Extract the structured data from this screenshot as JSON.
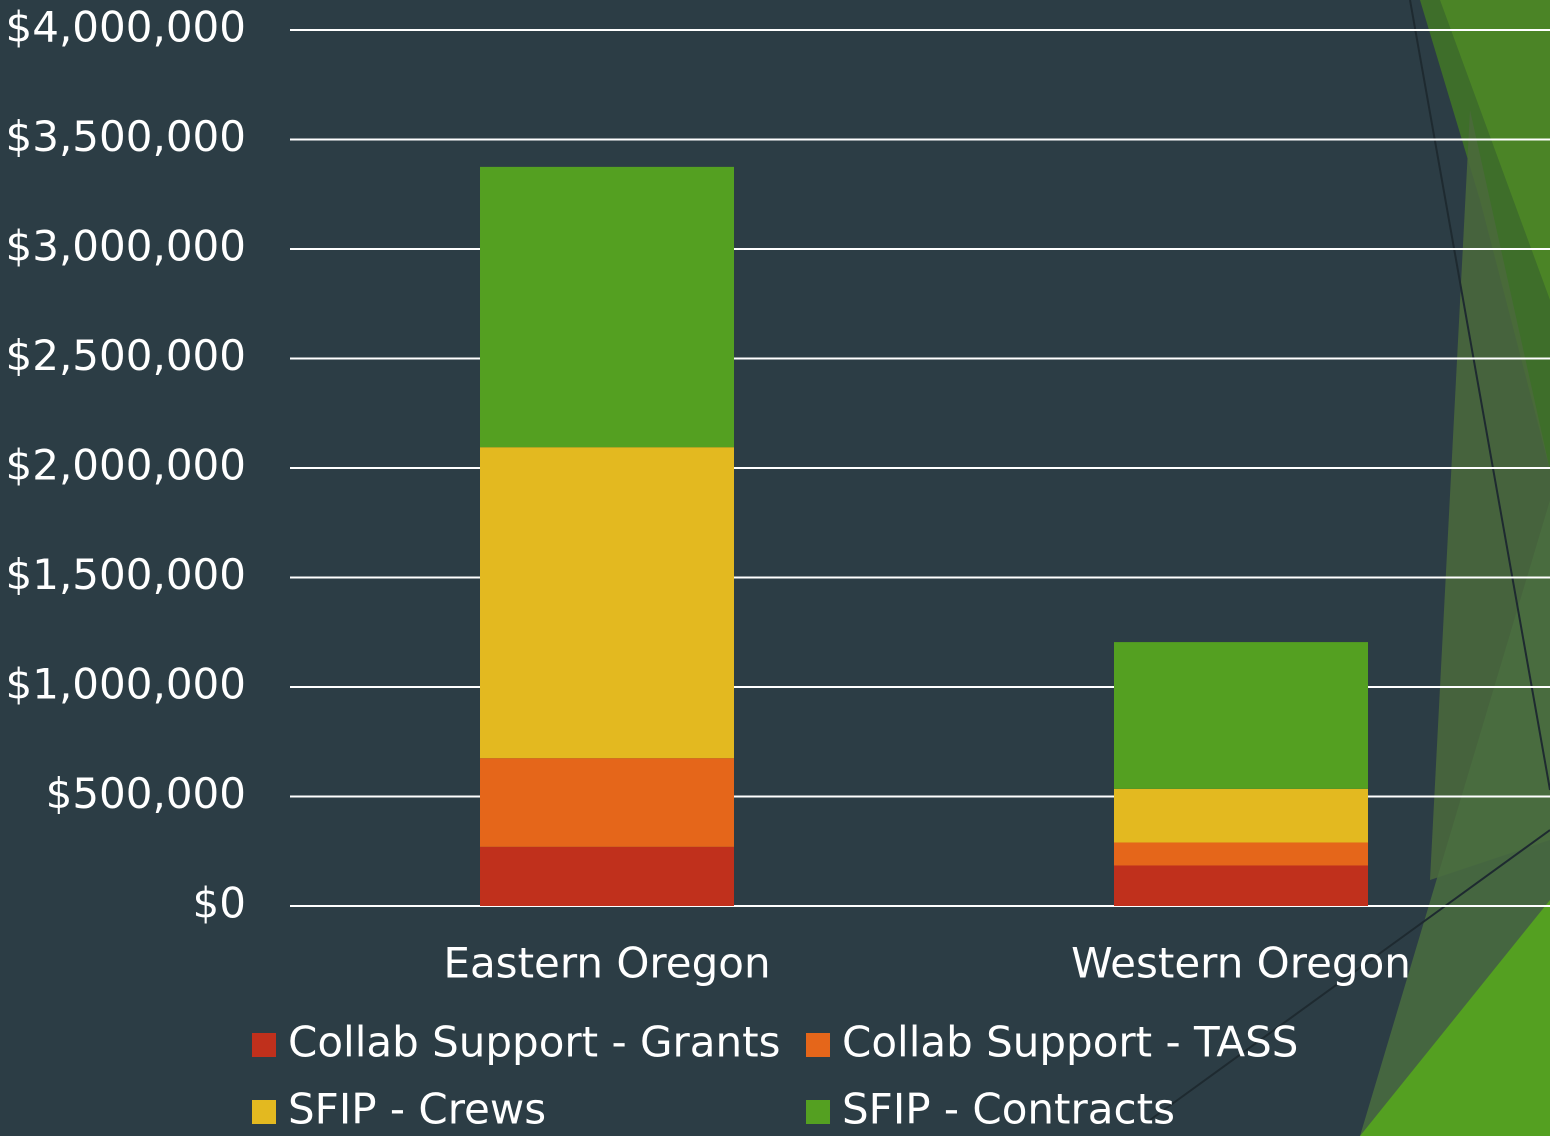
{
  "chart_data": {
    "type": "bar",
    "stacked": true,
    "categories": [
      "Eastern Oregon",
      "Western Oregon"
    ],
    "series": [
      {
        "name": "Collab Support - Grants",
        "color": "#c0301c",
        "values": [
          270000,
          185000
        ]
      },
      {
        "name": "Collab Support - TASS",
        "color": "#e5661a",
        "values": [
          405000,
          105000
        ]
      },
      {
        "name": "SFIP - Crews",
        "color": "#e3b920",
        "values": [
          1420000,
          245000
        ]
      },
      {
        "name": "SFIP - Contracts",
        "color": "#54a021",
        "values": [
          1280000,
          670000
        ]
      }
    ],
    "ylim": [
      0,
      4000000
    ],
    "yticks": [
      {
        "value": 0,
        "label": "$0"
      },
      {
        "value": 500000,
        "label": "$500,000"
      },
      {
        "value": 1000000,
        "label": "$1,000,000"
      },
      {
        "value": 1500000,
        "label": "$1,500,000"
      },
      {
        "value": 2000000,
        "label": "$2,000,000"
      },
      {
        "value": 2500000,
        "label": "$2,500,000"
      },
      {
        "value": 3000000,
        "label": "$3,000,000"
      },
      {
        "value": 3500000,
        "label": "$3,500,000"
      },
      {
        "value": 4000000,
        "label": "$4,000,000"
      }
    ],
    "grid": true,
    "legend": "bottom"
  }
}
